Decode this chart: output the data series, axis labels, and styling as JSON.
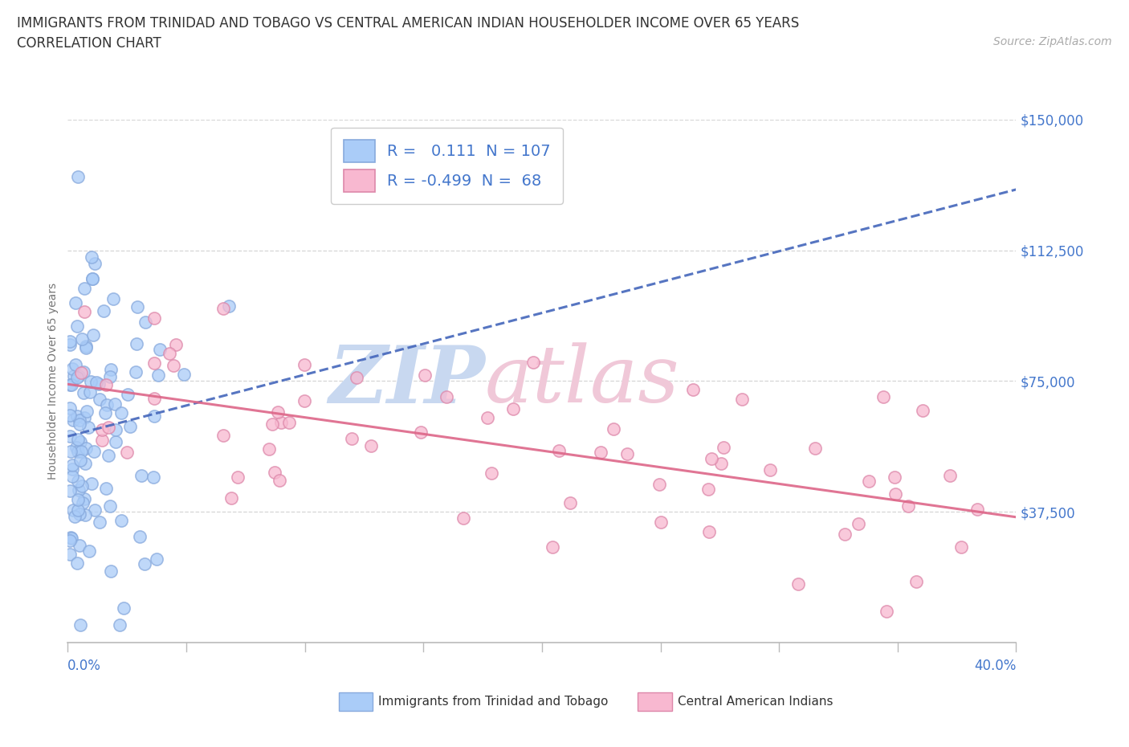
{
  "title_line1": "IMMIGRANTS FROM TRINIDAD AND TOBAGO VS CENTRAL AMERICAN INDIAN HOUSEHOLDER INCOME OVER 65 YEARS",
  "title_line2": "CORRELATION CHART",
  "source_text": "Source: ZipAtlas.com",
  "ylabel": "Householder Income Over 65 years",
  "xlim": [
    0.0,
    0.4
  ],
  "ylim": [
    0,
    150000
  ],
  "yticks": [
    0,
    37500,
    75000,
    112500,
    150000
  ],
  "ytick_labels": [
    "",
    "$37,500",
    "$75,000",
    "$112,500",
    "$150,000"
  ],
  "series1_color": "#aaccf8",
  "series1_edge": "#88aadd",
  "series2_color": "#f8b8d0",
  "series2_edge": "#dd88aa",
  "trendline1_color": "#4466bb",
  "trendline2_color": "#dd6688",
  "R1": 0.111,
  "N1": 107,
  "R2": -0.499,
  "N2": 68,
  "legend_label1": "Immigrants from Trinidad and Tobago",
  "legend_label2": "Central American Indians",
  "blue_text_color": "#4477cc",
  "source_color": "#aaaaaa",
  "title_color": "#333333",
  "grid_color": "#cccccc",
  "background_color": "#ffffff",
  "watermark_zip_color": "#c8d8f0",
  "watermark_atlas_color": "#f0c8d8"
}
